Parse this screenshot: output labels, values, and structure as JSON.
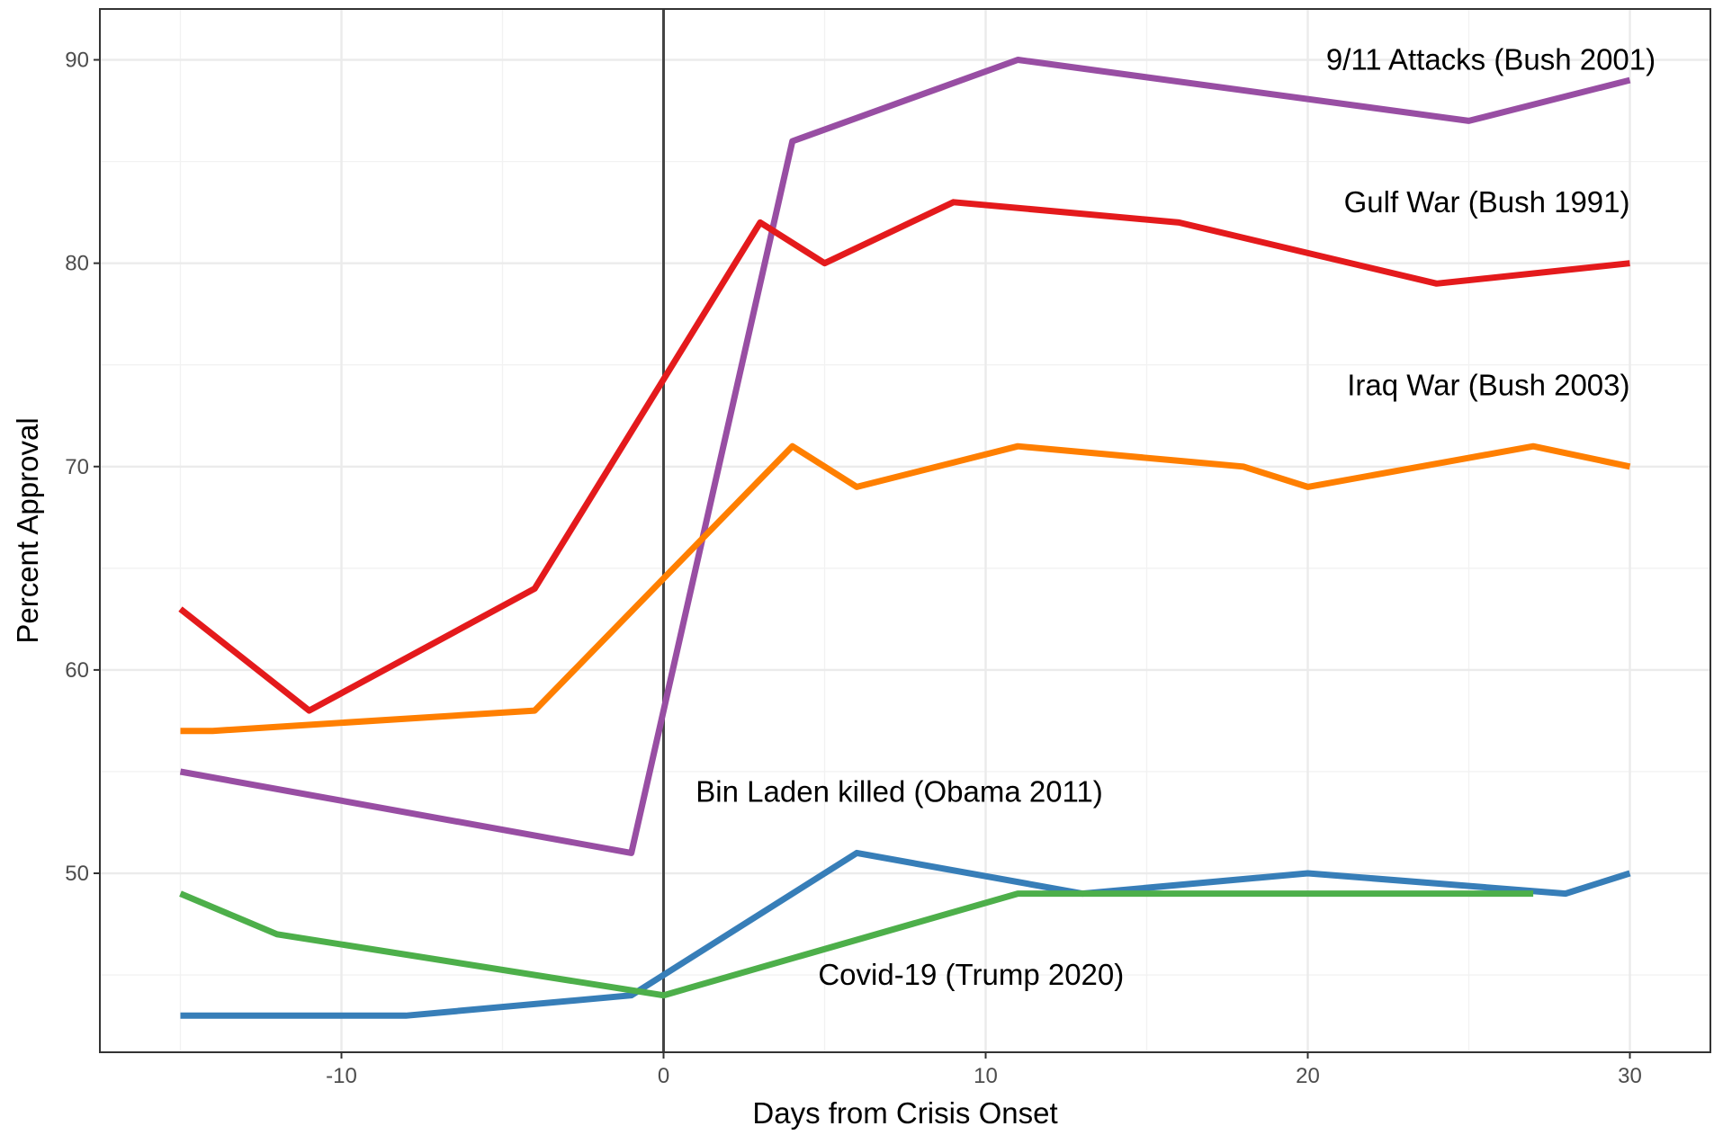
{
  "chart_data": {
    "type": "line",
    "xlabel": "Days from Crisis Onset",
    "ylabel": "Percent Approval",
    "xlim": [
      -17.5,
      32.5
    ],
    "ylim": [
      41.2,
      92.5
    ],
    "x_ticks": [
      -10,
      0,
      10,
      20,
      30
    ],
    "x_tick_labels": [
      "-10",
      "0",
      "10",
      "20",
      "30"
    ],
    "y_ticks": [
      50,
      60,
      70,
      80,
      90
    ],
    "y_tick_labels": [
      "50",
      "60",
      "70",
      "80",
      "90"
    ],
    "vertical_reference_line": 0,
    "grid": true,
    "series": [
      {
        "name": "9/11 Attacks (Bush 2001)",
        "color": "#984ea3",
        "x": [
          -15,
          -1,
          4,
          11,
          25,
          30
        ],
        "y": [
          55,
          51,
          86,
          90,
          87,
          89
        ]
      },
      {
        "name": "Gulf War (Bush 1991)",
        "color": "#e41a1c",
        "x": [
          -15,
          -11,
          -4,
          3,
          5,
          9,
          16,
          24,
          30
        ],
        "y": [
          63,
          58,
          64,
          82,
          80,
          83,
          82,
          79,
          80
        ]
      },
      {
        "name": "Iraq War (Bush 2003)",
        "color": "#ff7f00",
        "x": [
          -15,
          -14,
          -4,
          4,
          6,
          11,
          18,
          20,
          27,
          30
        ],
        "y": [
          57,
          57,
          58,
          71,
          69,
          71,
          70,
          69,
          71,
          70
        ]
      },
      {
        "name": "Bin Laden killed (Obama 2011)",
        "color": "#377eb8",
        "x": [
          -15,
          -8,
          -1,
          6,
          13,
          20,
          28,
          30
        ],
        "y": [
          43,
          43,
          44,
          51,
          49,
          50,
          49,
          50
        ]
      },
      {
        "name": "Covid-19 (Trump 2020)",
        "color": "#4daf4a",
        "x": [
          -15,
          -12,
          0,
          11,
          27
        ],
        "y": [
          49,
          47,
          44,
          49,
          49
        ]
      }
    ],
    "series_label_positions": [
      {
        "series": "9/11 Attacks (Bush 2001)",
        "x": 30.8,
        "y": 90,
        "anchor": "end"
      },
      {
        "series": "Gulf War (Bush 1991)",
        "x": 30,
        "y": 83,
        "anchor": "end"
      },
      {
        "series": "Iraq War (Bush 2003)",
        "x": 30,
        "y": 74,
        "anchor": "end"
      },
      {
        "series": "Bin Laden killed (Obama 2011)",
        "x": 1,
        "y": 54,
        "anchor": "start"
      },
      {
        "series": "Covid-19 (Trump 2020)",
        "x": 4.8,
        "y": 45,
        "anchor": "start"
      }
    ]
  }
}
